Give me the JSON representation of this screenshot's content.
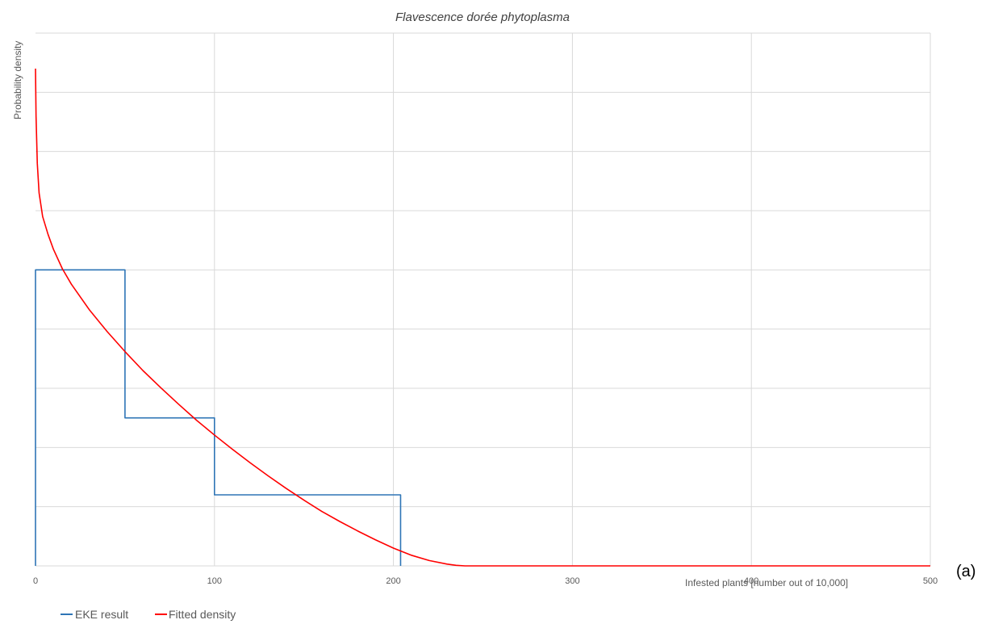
{
  "chart_data": {
    "type": "line",
    "title": "Flavescence dorée phytoplasma",
    "xlabel": "Infested plants [number out of 10,000]",
    "ylabel": "Probability density",
    "panel_label": "(a)",
    "xlim": [
      0,
      500
    ],
    "ylim": [
      0,
      9
    ],
    "x_ticks": [
      0,
      100,
      200,
      300,
      400,
      500
    ],
    "x_tick_labels": [
      "0",
      "100",
      "200",
      "300",
      "400",
      "500"
    ],
    "y_gridlines": [
      1,
      2,
      3,
      4,
      5,
      6,
      7,
      8,
      9
    ],
    "y_tick_labels_shown": false,
    "grid": true,
    "legend_position": "bottom-left",
    "series": [
      {
        "name": "EKE result",
        "style": "step",
        "color": "#2e75b6",
        "x": [
          0,
          0,
          50,
          50,
          100,
          100,
          204,
          204
        ],
        "y": [
          0,
          5,
          5,
          2.5,
          2.5,
          1.2,
          1.2,
          0
        ]
      },
      {
        "name": "Fitted density",
        "style": "line",
        "color": "#ff0000",
        "x": [
          0,
          0.3,
          1,
          2,
          4,
          7,
          10,
          15,
          20,
          30,
          40,
          50,
          60,
          70,
          80,
          90,
          100,
          110,
          120,
          130,
          140,
          150,
          160,
          170,
          180,
          190,
          200,
          210,
          220,
          230,
          235,
          240,
          250,
          300,
          400,
          500
        ],
        "y": [
          8.4,
          7.6,
          6.8,
          6.3,
          5.9,
          5.6,
          5.35,
          5.02,
          4.76,
          4.33,
          3.96,
          3.62,
          3.3,
          3.01,
          2.73,
          2.46,
          2.21,
          1.97,
          1.74,
          1.52,
          1.31,
          1.11,
          0.92,
          0.75,
          0.59,
          0.44,
          0.3,
          0.18,
          0.09,
          0.03,
          0.01,
          0,
          0,
          0,
          0,
          0
        ]
      }
    ]
  }
}
